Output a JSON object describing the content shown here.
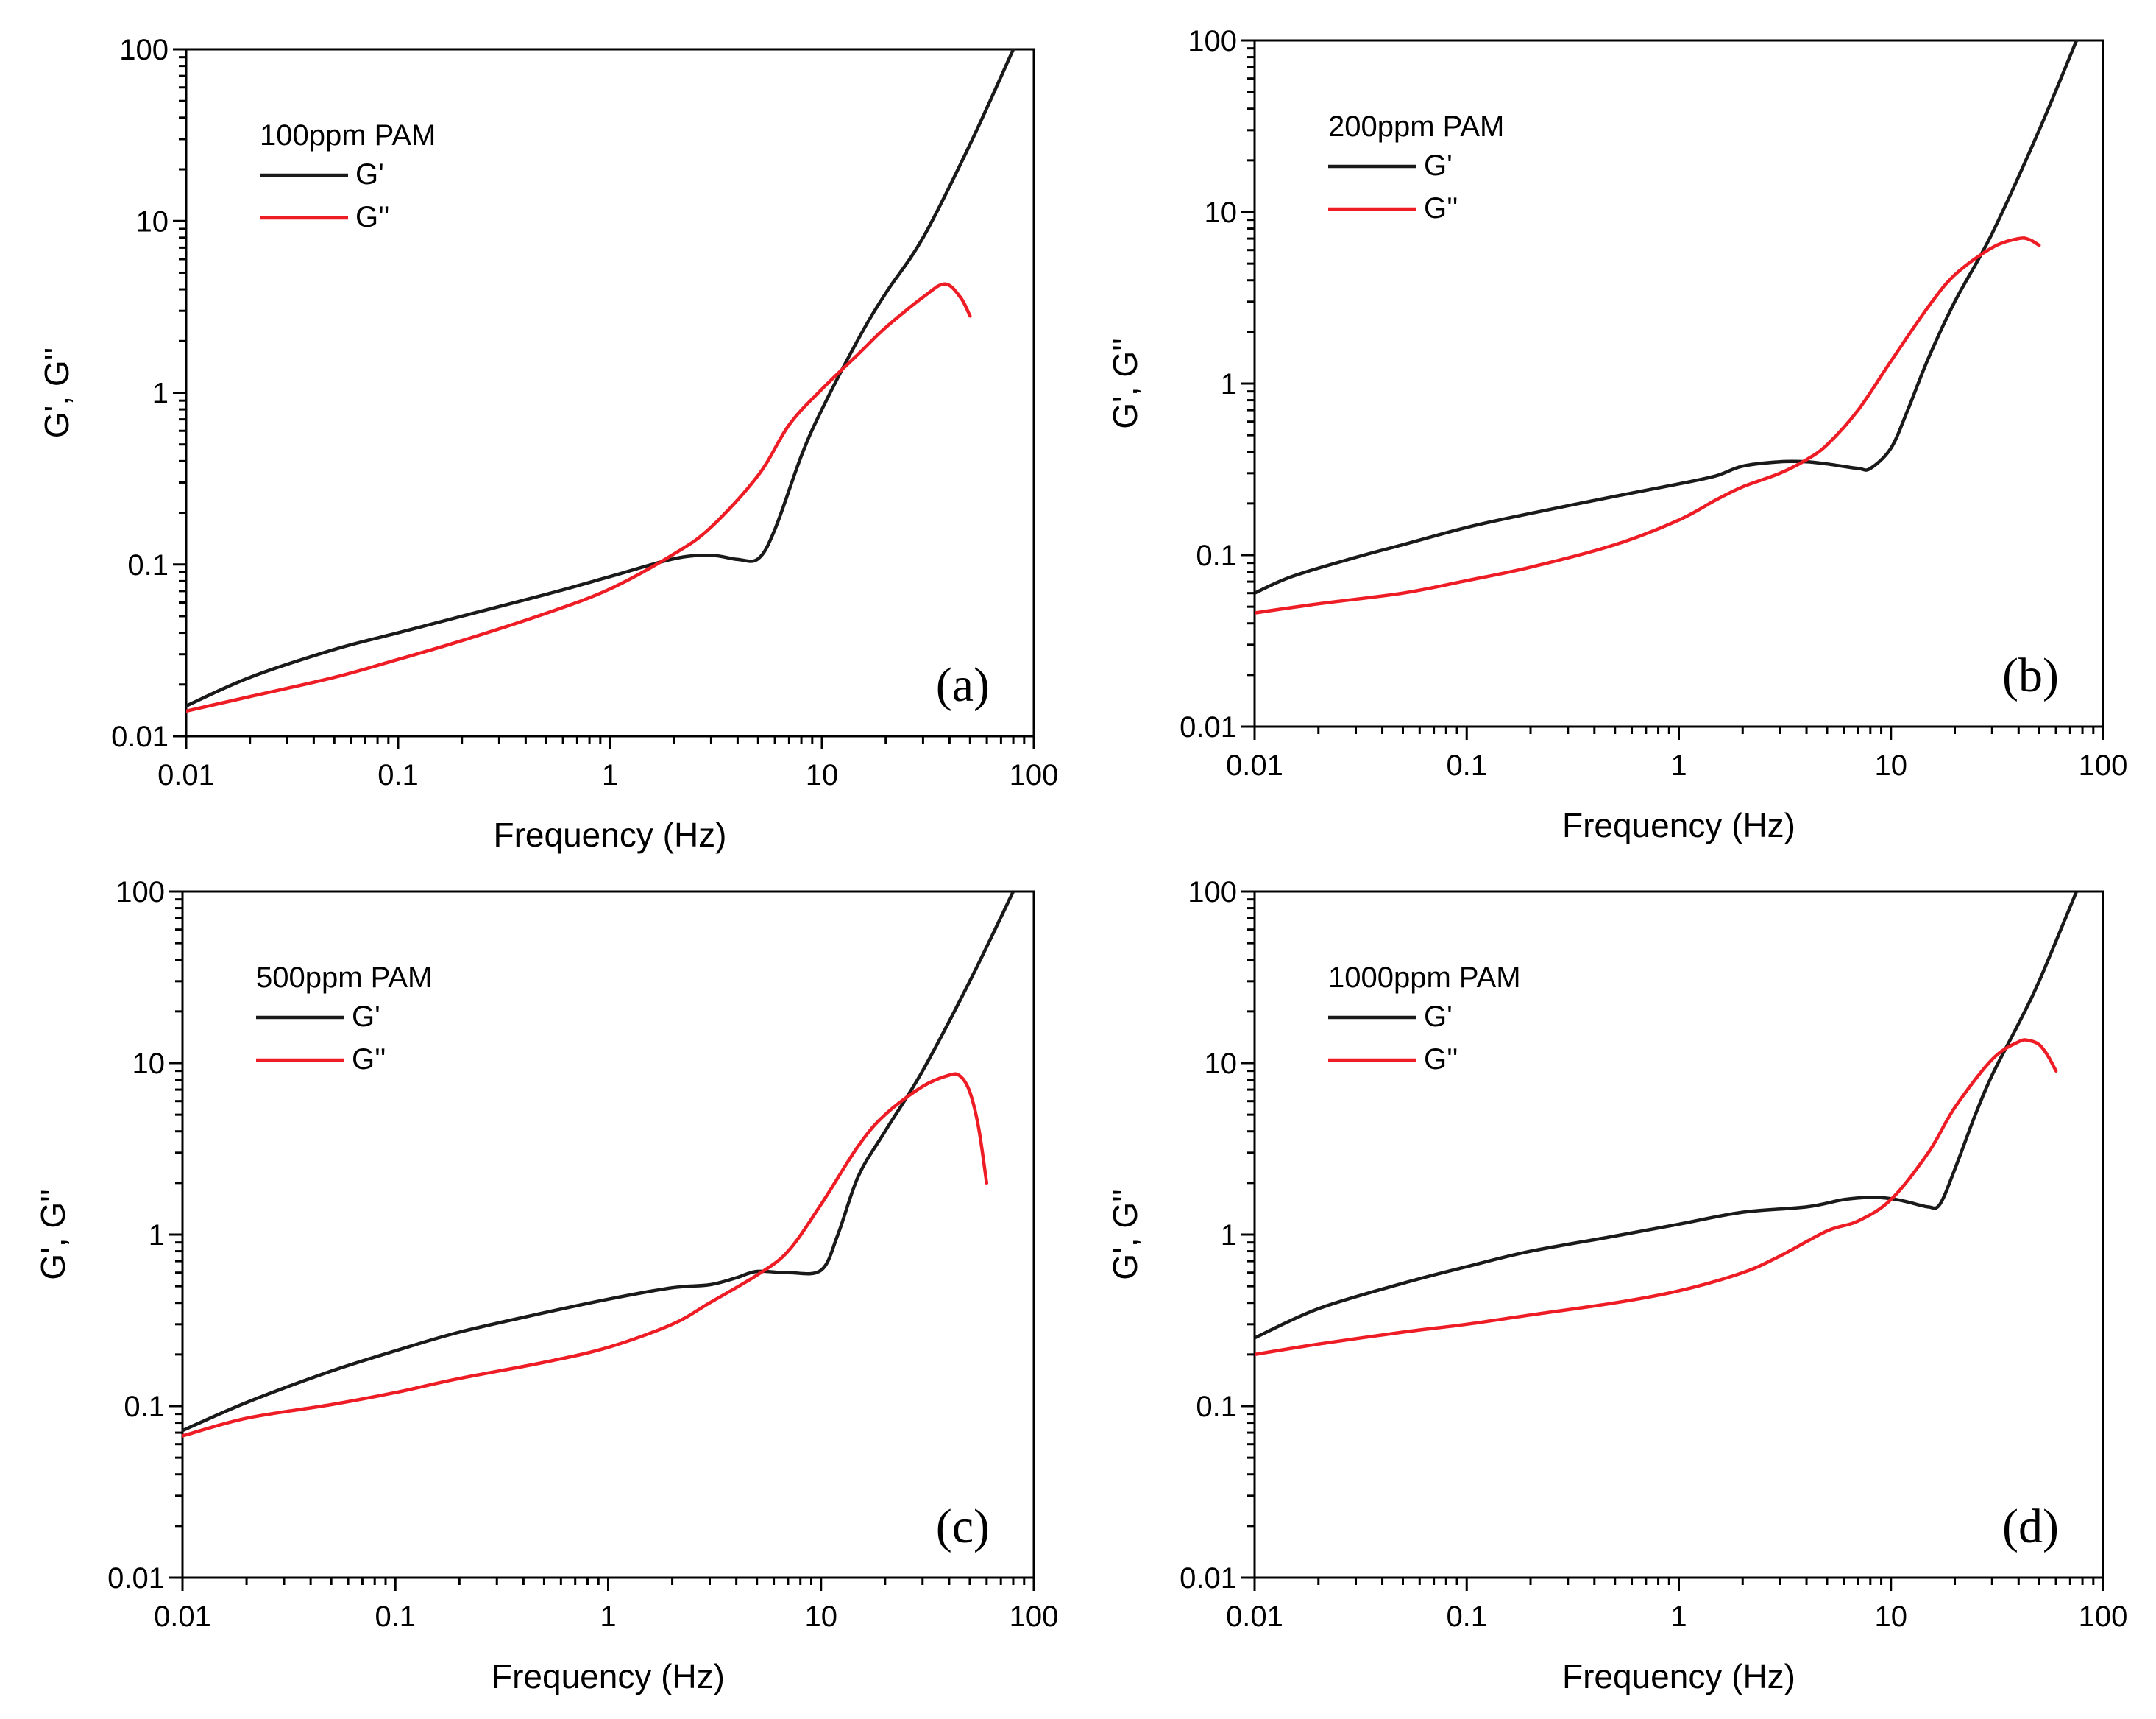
{
  "figure": {
    "description_title": ""
  },
  "chart_data": [
    {
      "type": "line",
      "panel_label": "(a)",
      "legend_title": "100ppm PAM",
      "xlabel": "Frequency (Hz)",
      "ylabel": "G', G''",
      "xscale": "log",
      "yscale": "log",
      "xlim": [
        0.01,
        100
      ],
      "ylim": [
        0.01,
        100
      ],
      "xticks": [
        "0.01",
        "0.1",
        "1",
        "10",
        "100"
      ],
      "yticks": [
        "0.01",
        "0.1",
        "1",
        "10",
        "100"
      ],
      "legend_position": "top-left",
      "series": [
        {
          "name": "G'",
          "color": "#1a1a1a",
          "x": [
            0.01,
            0.02,
            0.05,
            0.1,
            0.2,
            0.5,
            1,
            2,
            3,
            4,
            5,
            6,
            8,
            10,
            15,
            20,
            30,
            50,
            80
          ],
          "y": [
            0.015,
            0.022,
            0.032,
            0.04,
            0.05,
            0.067,
            0.085,
            0.108,
            0.113,
            0.107,
            0.108,
            0.16,
            0.43,
            0.8,
            2.1,
            3.8,
            8.0,
            28,
            100
          ]
        },
        {
          "name": "G''",
          "color": "#ee1c24",
          "x": [
            0.01,
            0.02,
            0.05,
            0.1,
            0.2,
            0.5,
            1,
            2,
            3,
            5,
            7,
            10,
            15,
            20,
            30,
            38,
            45,
            50
          ],
          "y": [
            0.014,
            0.017,
            0.022,
            0.028,
            0.036,
            0.052,
            0.072,
            0.115,
            0.165,
            0.33,
            0.65,
            1.05,
            1.7,
            2.4,
            3.6,
            4.3,
            3.6,
            2.8
          ]
        }
      ]
    },
    {
      "type": "line",
      "panel_label": "(b)",
      "legend_title": "200ppm PAM",
      "xlabel": "Frequency (Hz)",
      "ylabel": "G', G''",
      "xscale": "log",
      "yscale": "log",
      "xlim": [
        0.01,
        100
      ],
      "ylim": [
        0.01,
        100
      ],
      "xticks": [
        "0.01",
        "0.1",
        "1",
        "10",
        "100"
      ],
      "yticks": [
        "0.01",
        "0.1",
        "1",
        "10",
        "100"
      ],
      "legend_position": "top-left",
      "series": [
        {
          "name": "G'",
          "color": "#1a1a1a",
          "x": [
            0.01,
            0.015,
            0.03,
            0.05,
            0.1,
            0.2,
            0.5,
            1,
            1.5,
            2,
            3,
            4,
            5,
            7,
            8,
            10,
            12,
            15,
            20,
            30,
            50,
            75
          ],
          "y": [
            0.06,
            0.075,
            0.097,
            0.115,
            0.145,
            0.175,
            0.22,
            0.26,
            0.29,
            0.33,
            0.35,
            0.35,
            0.34,
            0.32,
            0.32,
            0.42,
            0.7,
            1.4,
            3.0,
            7.5,
            30,
            100
          ]
        },
        {
          "name": "G''",
          "color": "#ee1c24",
          "x": [
            0.01,
            0.02,
            0.05,
            0.1,
            0.2,
            0.5,
            1,
            1.5,
            2,
            3,
            4,
            5,
            7,
            10,
            15,
            20,
            30,
            40,
            45,
            50
          ],
          "y": [
            0.046,
            0.052,
            0.06,
            0.071,
            0.085,
            0.115,
            0.16,
            0.21,
            0.25,
            0.3,
            0.36,
            0.44,
            0.7,
            1.35,
            2.8,
            4.3,
            6.2,
            7.0,
            6.9,
            6.4
          ]
        }
      ]
    },
    {
      "type": "line",
      "panel_label": "(c)",
      "legend_title": "500ppm PAM",
      "xlabel": "Frequency (Hz)",
      "ylabel": "G', G''",
      "xscale": "log",
      "yscale": "log",
      "xlim": [
        0.01,
        100
      ],
      "ylim": [
        0.01,
        100
      ],
      "xticks": [
        "0.01",
        "0.1",
        "1",
        "10",
        "100"
      ],
      "yticks": [
        "0.01",
        "0.1",
        "1",
        "10",
        "100"
      ],
      "legend_position": "top-left",
      "series": [
        {
          "name": "G'",
          "color": "#1a1a1a",
          "x": [
            0.01,
            0.02,
            0.05,
            0.1,
            0.2,
            0.5,
            1,
            2,
            3,
            4,
            5,
            7,
            10,
            12,
            15,
            20,
            30,
            50,
            80
          ],
          "y": [
            0.072,
            0.105,
            0.16,
            0.21,
            0.27,
            0.35,
            0.42,
            0.49,
            0.51,
            0.56,
            0.61,
            0.6,
            0.62,
            1.0,
            2.2,
            4.0,
            9.0,
            30,
            100
          ]
        },
        {
          "name": "G''",
          "color": "#ee1c24",
          "x": [
            0.01,
            0.02,
            0.05,
            0.1,
            0.2,
            0.5,
            1,
            2,
            3,
            5,
            7,
            10,
            15,
            20,
            30,
            40,
            45,
            50,
            55,
            60
          ],
          "y": [
            0.067,
            0.085,
            0.102,
            0.12,
            0.145,
            0.18,
            0.22,
            0.3,
            0.4,
            0.58,
            0.8,
            1.5,
            3.3,
            5.0,
            7.3,
            8.5,
            8.4,
            6.8,
            4.2,
            2.0
          ]
        }
      ]
    },
    {
      "type": "line",
      "panel_label": "(d)",
      "legend_title": "1000ppm PAM",
      "xlabel": "Frequency (Hz)",
      "ylabel": "G', G''",
      "xscale": "log",
      "yscale": "log",
      "xlim": [
        0.01,
        100
      ],
      "ylim": [
        0.01,
        100
      ],
      "xticks": [
        "0.01",
        "0.1",
        "1",
        "10",
        "100"
      ],
      "yticks": [
        "0.01",
        "0.1",
        "1",
        "10",
        "100"
      ],
      "legend_position": "top-left",
      "series": [
        {
          "name": "G'",
          "color": "#1a1a1a",
          "x": [
            0.01,
            0.02,
            0.05,
            0.1,
            0.2,
            0.5,
            1,
            2,
            4,
            6,
            8,
            10,
            12,
            15,
            17,
            20,
            25,
            30,
            40,
            50,
            75
          ],
          "y": [
            0.25,
            0.37,
            0.52,
            0.65,
            0.8,
            0.98,
            1.15,
            1.35,
            1.45,
            1.6,
            1.65,
            1.62,
            1.55,
            1.45,
            1.5,
            2.4,
            5.0,
            8.5,
            17,
            30,
            100
          ]
        },
        {
          "name": "G''",
          "color": "#ee1c24",
          "x": [
            0.01,
            0.02,
            0.05,
            0.1,
            0.2,
            0.5,
            1,
            2,
            3,
            5,
            7,
            10,
            15,
            20,
            30,
            40,
            45,
            50,
            55,
            60
          ],
          "y": [
            0.2,
            0.23,
            0.27,
            0.3,
            0.34,
            0.4,
            0.47,
            0.6,
            0.75,
            1.05,
            1.2,
            1.6,
            3.0,
            5.5,
            10.5,
            13.3,
            13.5,
            12.8,
            11.0,
            9.0
          ]
        }
      ]
    }
  ]
}
